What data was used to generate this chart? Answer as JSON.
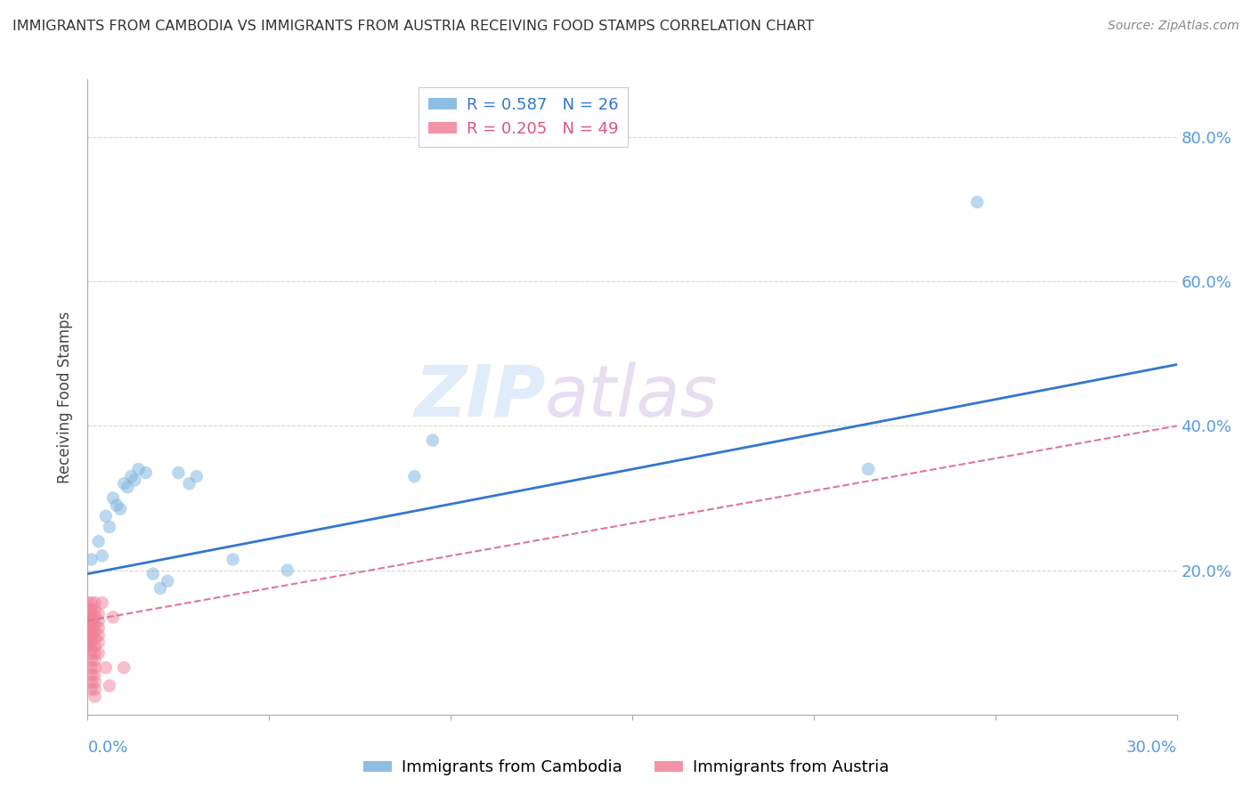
{
  "title": "IMMIGRANTS FROM CAMBODIA VS IMMIGRANTS FROM AUSTRIA RECEIVING FOOD STAMPS CORRELATION CHART",
  "source": "Source: ZipAtlas.com",
  "ylabel": "Receiving Food Stamps",
  "yticks": [
    0.0,
    0.2,
    0.4,
    0.6,
    0.8
  ],
  "ytick_labels": [
    "",
    "20.0%",
    "40.0%",
    "60.0%",
    "80.0%"
  ],
  "xlim": [
    0.0,
    0.3
  ],
  "ylim": [
    0.0,
    0.88
  ],
  "watermark": "ZIPatlas",
  "legend_entries": [
    {
      "label": "R = 0.587   N = 26",
      "color": "#a8c8f0"
    },
    {
      "label": "R = 0.205   N = 49",
      "color": "#f0a0b0"
    }
  ],
  "cambodia_scatter": [
    [
      0.001,
      0.215
    ],
    [
      0.003,
      0.24
    ],
    [
      0.004,
      0.22
    ],
    [
      0.005,
      0.275
    ],
    [
      0.006,
      0.26
    ],
    [
      0.007,
      0.3
    ],
    [
      0.008,
      0.29
    ],
    [
      0.009,
      0.285
    ],
    [
      0.01,
      0.32
    ],
    [
      0.011,
      0.315
    ],
    [
      0.012,
      0.33
    ],
    [
      0.013,
      0.325
    ],
    [
      0.014,
      0.34
    ],
    [
      0.016,
      0.335
    ],
    [
      0.018,
      0.195
    ],
    [
      0.02,
      0.175
    ],
    [
      0.022,
      0.185
    ],
    [
      0.025,
      0.335
    ],
    [
      0.028,
      0.32
    ],
    [
      0.03,
      0.33
    ],
    [
      0.04,
      0.215
    ],
    [
      0.055,
      0.2
    ],
    [
      0.09,
      0.33
    ],
    [
      0.095,
      0.38
    ],
    [
      0.215,
      0.34
    ],
    [
      0.245,
      0.71
    ]
  ],
  "austria_scatter": [
    [
      0.0,
      0.155
    ],
    [
      0.0,
      0.145
    ],
    [
      0.0,
      0.135
    ],
    [
      0.0,
      0.13
    ],
    [
      0.0,
      0.12
    ],
    [
      0.0,
      0.115
    ],
    [
      0.0,
      0.105
    ],
    [
      0.0,
      0.1
    ],
    [
      0.0,
      0.095
    ],
    [
      0.001,
      0.155
    ],
    [
      0.001,
      0.145
    ],
    [
      0.001,
      0.14
    ],
    [
      0.001,
      0.13
    ],
    [
      0.001,
      0.125
    ],
    [
      0.001,
      0.115
    ],
    [
      0.001,
      0.11
    ],
    [
      0.001,
      0.1
    ],
    [
      0.001,
      0.09
    ],
    [
      0.001,
      0.085
    ],
    [
      0.001,
      0.075
    ],
    [
      0.001,
      0.065
    ],
    [
      0.001,
      0.055
    ],
    [
      0.001,
      0.045
    ],
    [
      0.001,
      0.035
    ],
    [
      0.002,
      0.155
    ],
    [
      0.002,
      0.145
    ],
    [
      0.002,
      0.135
    ],
    [
      0.002,
      0.125
    ],
    [
      0.002,
      0.115
    ],
    [
      0.002,
      0.105
    ],
    [
      0.002,
      0.095
    ],
    [
      0.002,
      0.085
    ],
    [
      0.002,
      0.075
    ],
    [
      0.002,
      0.065
    ],
    [
      0.002,
      0.055
    ],
    [
      0.002,
      0.045
    ],
    [
      0.002,
      0.035
    ],
    [
      0.002,
      0.025
    ],
    [
      0.003,
      0.14
    ],
    [
      0.003,
      0.13
    ],
    [
      0.003,
      0.12
    ],
    [
      0.003,
      0.11
    ],
    [
      0.003,
      0.1
    ],
    [
      0.003,
      0.085
    ],
    [
      0.004,
      0.155
    ],
    [
      0.005,
      0.065
    ],
    [
      0.006,
      0.04
    ],
    [
      0.007,
      0.135
    ],
    [
      0.01,
      0.065
    ]
  ],
  "cambodia_line_x": [
    0.0,
    0.3
  ],
  "cambodia_line_y": [
    0.195,
    0.485
  ],
  "austria_line_x": [
    0.0,
    0.3
  ],
  "austria_line_y": [
    0.13,
    0.4
  ],
  "scatter_size": 110,
  "scatter_alpha": 0.5,
  "cambodia_color": "#7ab3e0",
  "austria_color": "#f08098",
  "line_blue": "#3377cc",
  "line_pink": "#dd7799"
}
